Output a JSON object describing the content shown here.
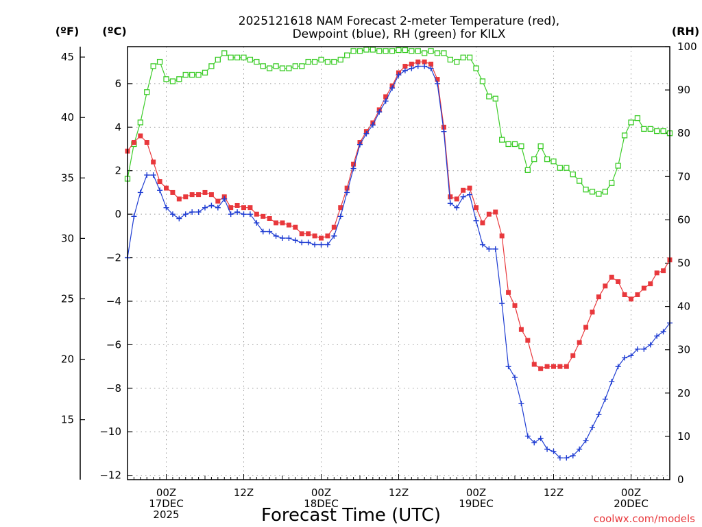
{
  "chart_data": {
    "type": "line",
    "title_lines": [
      "2025121618 NAM Forecast 2-meter Temperature (red),",
      "Dewpoint (blue), RH (green) for KILX"
    ],
    "xlabel": "Forecast Time (UTC)",
    "credit": "coolwx.com/models",
    "units": {
      "left_outer": "(ºF)",
      "left_inner": "(ºC)",
      "right": "(RH)"
    },
    "x_hours_range": [
      18,
      102
    ],
    "x_tick_hours": [
      24,
      36,
      48,
      60,
      72,
      84,
      96
    ],
    "x_ticks": [
      {
        "hour": 24,
        "lines": [
          "00Z",
          "17DEC",
          "2025"
        ]
      },
      {
        "hour": 36,
        "lines": [
          "12Z"
        ]
      },
      {
        "hour": 48,
        "lines": [
          "00Z",
          "18DEC"
        ]
      },
      {
        "hour": 60,
        "lines": [
          "12Z"
        ]
      },
      {
        "hour": 72,
        "lines": [
          "00Z",
          "19DEC"
        ]
      },
      {
        "hour": 84,
        "lines": [
          "12Z"
        ]
      },
      {
        "hour": 96,
        "lines": [
          "00Z",
          "20DEC"
        ]
      }
    ],
    "ylim_c": [
      -12.2,
      7.7
    ],
    "yticks_c": [
      -12,
      -10,
      -8,
      -6,
      -4,
      -2,
      0,
      2,
      4,
      6
    ],
    "ytick_labels_c": [
      "−12",
      "−10",
      "−8",
      "−6",
      "−4",
      "−2",
      "0",
      "2",
      "4",
      "6"
    ],
    "yticks_f": [
      15,
      20,
      25,
      30,
      35,
      40,
      45
    ],
    "ytick_labels_f": [
      "15",
      "20",
      "25",
      "30",
      "35",
      "40",
      "45"
    ],
    "ylim_rh": [
      0,
      100
    ],
    "yticks_rh": [
      0,
      10,
      20,
      30,
      40,
      50,
      60,
      70,
      80,
      90,
      100
    ],
    "ytick_labels_rh": [
      "0",
      "10",
      "20",
      "30",
      "40",
      "50",
      "60",
      "70",
      "80",
      "90",
      "100"
    ],
    "series": [
      {
        "name": "Temperature",
        "unit": "C",
        "color": "#e8383c",
        "marker": "filled-square",
        "x": [
          18,
          19,
          20,
          21,
          22,
          23,
          24,
          25,
          26,
          27,
          28,
          29,
          30,
          31,
          32,
          33,
          34,
          35,
          36,
          37,
          38,
          39,
          40,
          41,
          42,
          43,
          44,
          45,
          46,
          47,
          48,
          49,
          50,
          51,
          52,
          53,
          54,
          55,
          56,
          57,
          58,
          59,
          60,
          61,
          62,
          63,
          64,
          65,
          66,
          67,
          68,
          69,
          70,
          71,
          72,
          73,
          74,
          75,
          76,
          77,
          78,
          79,
          80,
          81,
          82,
          83,
          84,
          85,
          86,
          87,
          88,
          89,
          90,
          91,
          92,
          93,
          94,
          95,
          96,
          97,
          98,
          99,
          100,
          101,
          102
        ],
        "values": [
          2.9,
          3.3,
          3.6,
          3.3,
          2.4,
          1.5,
          1.2,
          1.0,
          0.7,
          0.8,
          0.9,
          0.9,
          1.0,
          0.9,
          0.6,
          0.8,
          0.3,
          0.4,
          0.3,
          0.3,
          0.0,
          -0.1,
          -0.2,
          -0.4,
          -0.4,
          -0.5,
          -0.6,
          -0.9,
          -0.9,
          -1.0,
          -1.1,
          -1.0,
          -0.6,
          0.3,
          1.2,
          2.3,
          3.3,
          3.8,
          4.2,
          4.8,
          5.4,
          5.9,
          6.5,
          6.8,
          6.9,
          7.0,
          7.0,
          6.9,
          6.2,
          4.0,
          0.8,
          0.7,
          1.1,
          1.2,
          0.3,
          -0.4,
          0.0,
          0.1,
          -1.0,
          -3.6,
          -4.2,
          -5.3,
          -5.8,
          -6.9,
          -7.1,
          -7.0,
          -7.0,
          -7.0,
          -7.0,
          -6.5,
          -5.9,
          -5.2,
          -4.5,
          -3.8,
          -3.3,
          -2.9,
          -3.1,
          -3.7,
          -3.9,
          -3.7,
          -3.4,
          -3.2,
          -2.7,
          -2.6,
          -2.1
        ]
      },
      {
        "name": "Dewpoint",
        "unit": "C",
        "color": "#1e3cd2",
        "marker": "plus",
        "x": [
          18,
          19,
          20,
          21,
          22,
          23,
          24,
          25,
          26,
          27,
          28,
          29,
          30,
          31,
          32,
          33,
          34,
          35,
          36,
          37,
          38,
          39,
          40,
          41,
          42,
          43,
          44,
          45,
          46,
          47,
          48,
          49,
          50,
          51,
          52,
          53,
          54,
          55,
          56,
          57,
          58,
          59,
          60,
          61,
          62,
          63,
          64,
          65,
          66,
          67,
          68,
          69,
          70,
          71,
          72,
          73,
          74,
          75,
          76,
          77,
          78,
          79,
          80,
          81,
          82,
          83,
          84,
          85,
          86,
          87,
          88,
          89,
          90,
          91,
          92,
          93,
          94,
          95,
          96,
          97,
          98,
          99,
          100,
          101,
          102
        ],
        "values": [
          -2.0,
          -0.1,
          1.0,
          1.8,
          1.8,
          1.1,
          0.3,
          0.0,
          -0.2,
          0.0,
          0.1,
          0.1,
          0.3,
          0.4,
          0.3,
          0.7,
          0.0,
          0.1,
          0.0,
          0.0,
          -0.4,
          -0.8,
          -0.8,
          -1.0,
          -1.1,
          -1.1,
          -1.2,
          -1.3,
          -1.3,
          -1.4,
          -1.4,
          -1.4,
          -1.0,
          -0.1,
          1.0,
          2.1,
          3.2,
          3.7,
          4.1,
          4.7,
          5.2,
          5.8,
          6.4,
          6.6,
          6.7,
          6.8,
          6.8,
          6.7,
          6.0,
          3.8,
          0.5,
          0.3,
          0.8,
          0.9,
          -0.3,
          -1.4,
          -1.6,
          -1.6,
          -4.1,
          -7.0,
          -7.5,
          -8.7,
          -10.2,
          -10.5,
          -10.3,
          -10.8,
          -10.9,
          -11.2,
          -11.2,
          -11.1,
          -10.8,
          -10.4,
          -9.8,
          -9.2,
          -8.5,
          -7.7,
          -7.0,
          -6.6,
          -6.5,
          -6.2,
          -6.2,
          -6.0,
          -5.6,
          -5.4,
          -5.0
        ]
      },
      {
        "name": "RH",
        "unit": "%",
        "color": "#3ccc28",
        "marker": "open-square",
        "x": [
          18,
          19,
          20,
          21,
          22,
          23,
          24,
          25,
          26,
          27,
          28,
          29,
          30,
          31,
          32,
          33,
          34,
          35,
          36,
          37,
          38,
          39,
          40,
          41,
          42,
          43,
          44,
          45,
          46,
          47,
          48,
          49,
          50,
          51,
          52,
          53,
          54,
          55,
          56,
          57,
          58,
          59,
          60,
          61,
          62,
          63,
          64,
          65,
          66,
          67,
          68,
          69,
          70,
          71,
          72,
          73,
          74,
          75,
          76,
          77,
          78,
          79,
          80,
          81,
          82,
          83,
          84,
          85,
          86,
          87,
          88,
          89,
          90,
          91,
          92,
          93,
          94,
          95,
          96,
          97,
          98,
          99,
          100,
          101,
          102
        ],
        "values": [
          69.5,
          77.5,
          82.5,
          89.5,
          95.5,
          96.5,
          92.5,
          92.0,
          92.5,
          93.5,
          93.5,
          93.5,
          94.0,
          95.5,
          97.0,
          98.5,
          97.5,
          97.5,
          97.5,
          97.0,
          96.5,
          95.5,
          95.0,
          95.5,
          95.0,
          95.0,
          95.5,
          95.5,
          96.5,
          96.5,
          97.0,
          96.5,
          96.5,
          97.0,
          98.0,
          99.0,
          99.0,
          99.3,
          99.3,
          99.0,
          99.0,
          99.0,
          99.2,
          99.2,
          99.0,
          99.0,
          98.5,
          99.0,
          98.5,
          98.5,
          97.0,
          96.5,
          97.5,
          97.5,
          95.0,
          92.0,
          88.5,
          88.0,
          78.5,
          77.5,
          77.5,
          77.0,
          71.5,
          74.0,
          77.0,
          74.0,
          73.5,
          72.0,
          72.0,
          70.5,
          69.0,
          67.0,
          66.5,
          66.0,
          66.5,
          68.5,
          72.5,
          79.5,
          82.5,
          83.5,
          81.0,
          81.0,
          80.5,
          80.5,
          80.0
        ]
      }
    ]
  }
}
